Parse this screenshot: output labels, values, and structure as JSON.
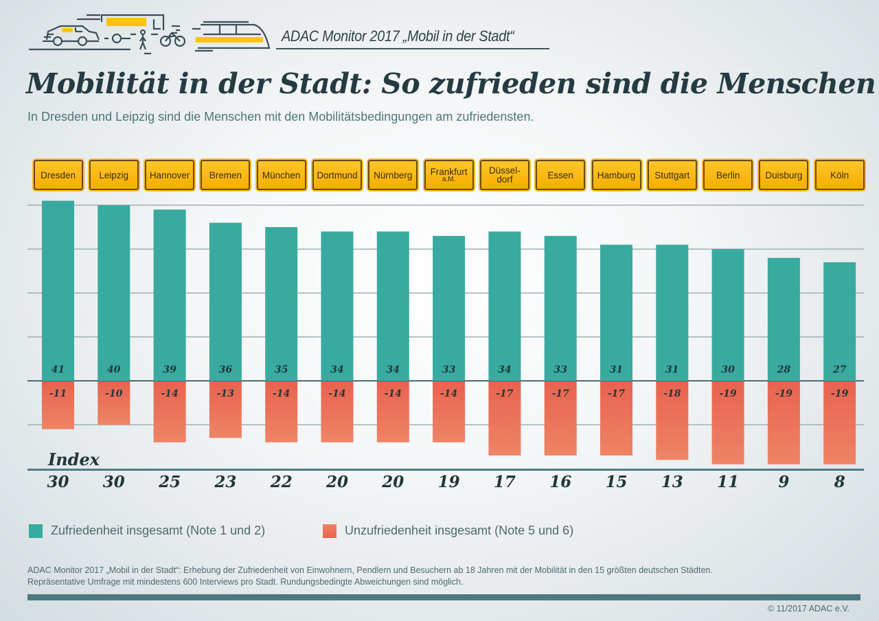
{
  "header": {
    "series_title": "ADAC Monitor 2017 „Mobil in der Stadt“",
    "icons": [
      "car-icon",
      "truck-icon",
      "pedestrian-icon",
      "bicycle-icon",
      "train-icon"
    ]
  },
  "title": "Mobilität in der Stadt: So zufrieden sind die Menschen",
  "subtitle": "In Dresden und Leipzig sind die Menschen mit den Mobilitätsbedingungen am zufriedensten.",
  "colors": {
    "satisfied": "#38aa9f",
    "dissatisfied_top": "#e8634f",
    "dissatisfied_bottom": "#ec8265",
    "sign": "#ffbd14",
    "text_dark": "#243b42",
    "accent_line": "#4d7a82"
  },
  "chart_data": {
    "type": "bar",
    "title": "Mobilität in der Stadt: So zufrieden sind die Menschen",
    "categories": [
      "Dresden",
      "Leipzig",
      "Hannover",
      "Bremen",
      "München",
      "Dortmund",
      "Nürnberg",
      "Frankfurt a.M.",
      "Düsseldorf",
      "Essen",
      "Hamburg",
      "Stuttgart",
      "Berlin",
      "Duisburg",
      "Köln"
    ],
    "category_display": [
      {
        "main": "Dresden",
        "sub": ""
      },
      {
        "main": "Leipzig",
        "sub": ""
      },
      {
        "main": "Hannover",
        "sub": ""
      },
      {
        "main": "Bremen",
        "sub": ""
      },
      {
        "main": "München",
        "sub": ""
      },
      {
        "main": "Dortmund",
        "sub": ""
      },
      {
        "main": "Nürnberg",
        "sub": ""
      },
      {
        "main": "Frankfurt",
        "sub": "a.M."
      },
      {
        "main": "Düssel-",
        "sub": "dorf"
      },
      {
        "main": "Essen",
        "sub": ""
      },
      {
        "main": "Hamburg",
        "sub": ""
      },
      {
        "main": "Stuttgart",
        "sub": ""
      },
      {
        "main": "Berlin",
        "sub": ""
      },
      {
        "main": "Duisburg",
        "sub": ""
      },
      {
        "main": "Köln",
        "sub": ""
      }
    ],
    "series": [
      {
        "name": "Zufriedenheit insgesamt (Note 1 und 2)",
        "values": [
          41,
          40,
          39,
          36,
          35,
          34,
          34,
          33,
          34,
          33,
          31,
          31,
          30,
          28,
          27
        ]
      },
      {
        "name": "Unzufriedenheit insgesamt (Note 5 und 6)",
        "values": [
          -11,
          -10,
          -14,
          -13,
          -14,
          -14,
          -14,
          -14,
          -17,
          -17,
          -17,
          -18,
          -19,
          -19,
          -19
        ]
      }
    ],
    "index_label": "Index",
    "index_values": [
      30,
      30,
      25,
      23,
      22,
      20,
      20,
      19,
      17,
      16,
      15,
      13,
      11,
      9,
      8
    ],
    "ylim": [
      -20,
      42
    ],
    "gridlines": [
      40,
      30,
      20,
      10,
      0,
      -10
    ],
    "grid": true,
    "legend_position": "bottom-left",
    "xlabel": "",
    "ylabel": ""
  },
  "legend": [
    {
      "label": "Zufriedenheit insgesamt (Note 1 und 2)"
    },
    {
      "label": "Unzufriedenheit insgesamt (Note 5 und 6)"
    }
  ],
  "footer": {
    "note_line1": "ADAC Monitor 2017 „Mobil in der Stadt“: Erhebung der Zufriedenheit von Einwohnern, Pendlern und Besuchern ab 18 Jahren mit der Mobilität in den 15 größten deutschen Städten.",
    "note_line2": "Repräsentative Umfrage mit mindestens 600 Interviews pro Stadt. Rundungsbedingte Abweichungen sind möglich.",
    "copyright": "© 11/2017 ADAC e.V."
  }
}
